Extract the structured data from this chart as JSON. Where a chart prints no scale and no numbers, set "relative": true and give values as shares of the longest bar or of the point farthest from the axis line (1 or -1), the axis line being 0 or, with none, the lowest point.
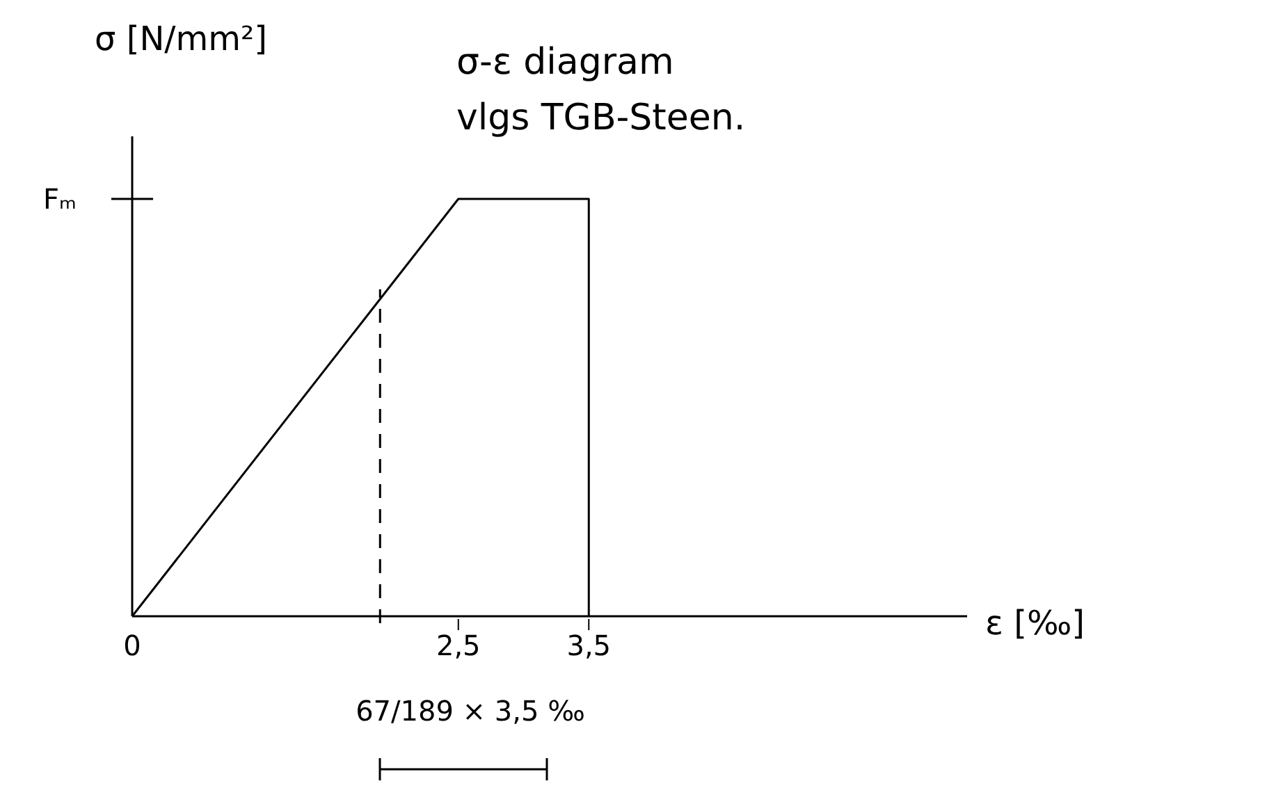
{
  "chart_data": {
    "type": "line",
    "title": "σ-ε diagram",
    "subtitle": "vlgs TGB-Steen.",
    "xlabel": "ε [‰]",
    "ylabel": "σ [N/mm²]",
    "relative": true,
    "x": [
      0,
      2.5,
      3.5,
      3.5
    ],
    "series": [
      {
        "color": "#000000",
        "values": [
          0,
          1,
          1,
          0
        ]
      }
    ],
    "xlim": [
      0,
      6.4
    ],
    "xticks": [
      0,
      {
        "value": 2.5,
        "label": "2,5"
      },
      {
        "value": 3.5,
        "label": "3,5"
      }
    ],
    "ref_lines": [
      {
        "axis": "x",
        "value": 1.9,
        "line_style": "dashed",
        "color": "#000000"
      }
    ],
    "annotations": [
      "Fₘ",
      "67/189 × 3,5 ‰"
    ]
  }
}
